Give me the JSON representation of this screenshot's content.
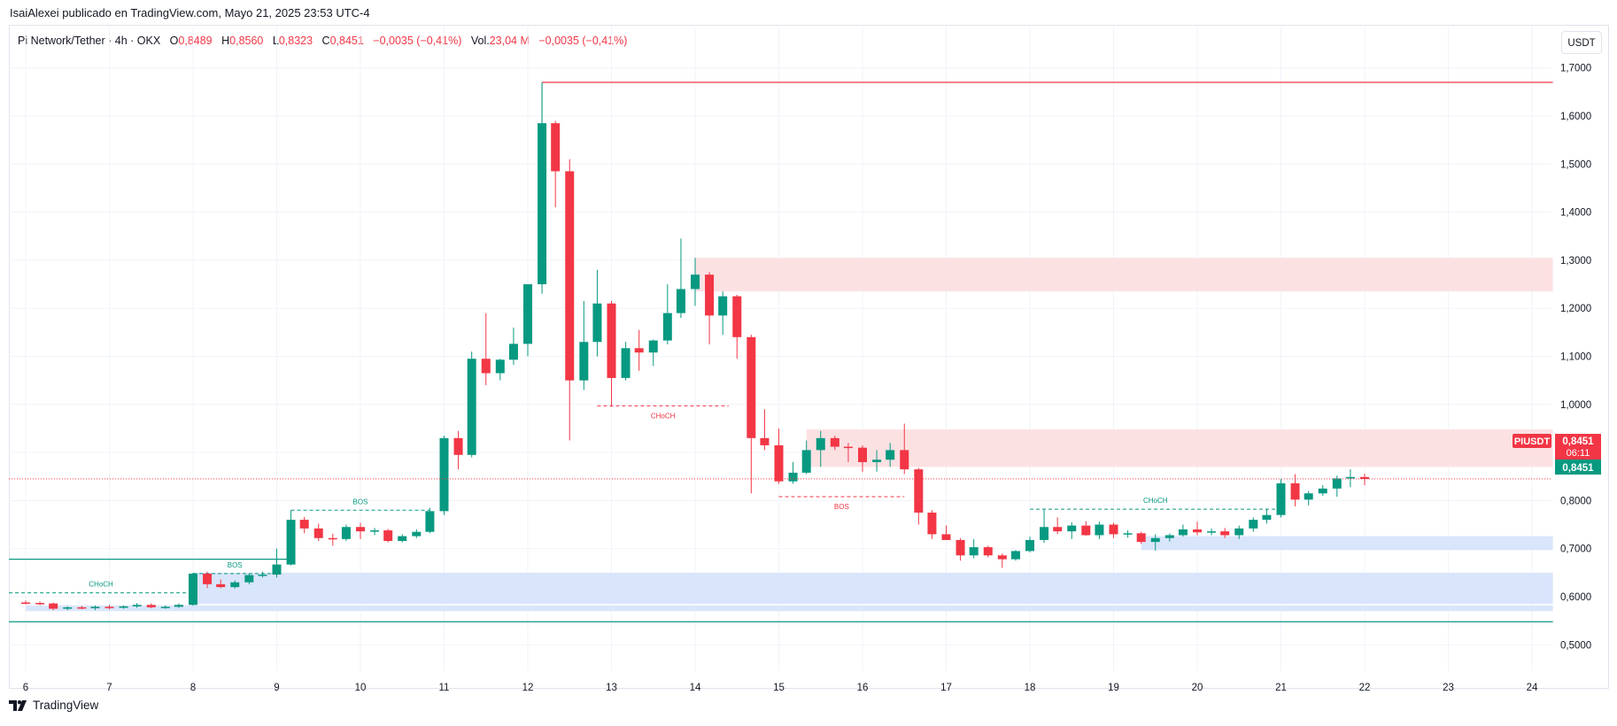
{
  "header": {
    "publisher": "IsaiAlexei publicado en TradingView.com, Mayo 21, 2025 23:53 UTC-4"
  },
  "legend": {
    "symbol": "Pi Network/Tether · 4h · OKX",
    "o_label": "O",
    "o_value": "0,8489",
    "h_label": "H",
    "h_value": "0,8560",
    "l_label": "L",
    "l_value": "0,8323",
    "c_label": "C",
    "c_value": "0,8451",
    "change": "−0,0035 (−0,41%)",
    "vol_label": "Vol.",
    "vol_value": "23,04 M",
    "vol_change": "−0,0035 (−0,41%)"
  },
  "price_axis": {
    "unit_button": "USDT"
  },
  "footer": {
    "brand": "TradingView"
  },
  "colors": {
    "up": "#089981",
    "down": "#f23645",
    "supply_zone": "#fce1e3",
    "demand_zone": "#d9e5fb",
    "grid": "#f0f3fa",
    "axis_text": "#131722"
  },
  "chart_data": {
    "type": "candlestick",
    "symbol": "PIUSDT",
    "interval": "4h",
    "ylim": [
      0.46,
      1.74
    ],
    "y_ticks": [
      0.5,
      0.6,
      0.7,
      0.8,
      0.9,
      1.0,
      1.1,
      1.2,
      1.3,
      1.4,
      1.5,
      1.6,
      1.7
    ],
    "y_tick_labels": [
      "0,5000",
      "0,6000",
      "0,7000",
      "0,8000",
      "0,9000",
      "1,0000",
      "1,1000",
      "1,2000",
      "1,3000",
      "1,4000",
      "1,5000",
      "1,6000",
      "1,7000"
    ],
    "x_labels": [
      "6",
      "7",
      "8",
      "9",
      "10",
      "11",
      "12",
      "13",
      "14",
      "15",
      "16",
      "17",
      "18",
      "19",
      "20",
      "21",
      "22",
      "23",
      "24"
    ],
    "candles": [
      {
        "day": 6.0,
        "o": 0.588,
        "h": 0.592,
        "l": 0.584,
        "c": 0.587
      },
      {
        "day": 6.17,
        "o": 0.587,
        "h": 0.59,
        "l": 0.583,
        "c": 0.586
      },
      {
        "day": 6.33,
        "o": 0.586,
        "h": 0.588,
        "l": 0.572,
        "c": 0.575
      },
      {
        "day": 6.5,
        "o": 0.575,
        "h": 0.58,
        "l": 0.572,
        "c": 0.578
      },
      {
        "day": 6.67,
        "o": 0.578,
        "h": 0.581,
        "l": 0.574,
        "c": 0.576
      },
      {
        "day": 6.83,
        "o": 0.576,
        "h": 0.582,
        "l": 0.572,
        "c": 0.579
      },
      {
        "day": 7.0,
        "o": 0.579,
        "h": 0.583,
        "l": 0.574,
        "c": 0.577
      },
      {
        "day": 7.17,
        "o": 0.577,
        "h": 0.582,
        "l": 0.575,
        "c": 0.58
      },
      {
        "day": 7.33,
        "o": 0.58,
        "h": 0.587,
        "l": 0.577,
        "c": 0.583
      },
      {
        "day": 7.5,
        "o": 0.583,
        "h": 0.586,
        "l": 0.576,
        "c": 0.578
      },
      {
        "day": 7.67,
        "o": 0.578,
        "h": 0.582,
        "l": 0.575,
        "c": 0.579
      },
      {
        "day": 7.83,
        "o": 0.579,
        "h": 0.586,
        "l": 0.577,
        "c": 0.583
      },
      {
        "day": 8.0,
        "o": 0.583,
        "h": 0.65,
        "l": 0.581,
        "c": 0.648
      },
      {
        "day": 8.17,
        "o": 0.648,
        "h": 0.652,
        "l": 0.618,
        "c": 0.626
      },
      {
        "day": 8.33,
        "o": 0.626,
        "h": 0.636,
        "l": 0.618,
        "c": 0.62
      },
      {
        "day": 8.5,
        "o": 0.62,
        "h": 0.634,
        "l": 0.617,
        "c": 0.63
      },
      {
        "day": 8.67,
        "o": 0.63,
        "h": 0.648,
        "l": 0.626,
        "c": 0.645
      },
      {
        "day": 8.83,
        "o": 0.645,
        "h": 0.652,
        "l": 0.64,
        "c": 0.646
      },
      {
        "day": 9.0,
        "o": 0.646,
        "h": 0.7,
        "l": 0.64,
        "c": 0.667
      },
      {
        "day": 9.17,
        "o": 0.667,
        "h": 0.78,
        "l": 0.665,
        "c": 0.76
      },
      {
        "day": 9.33,
        "o": 0.76,
        "h": 0.766,
        "l": 0.732,
        "c": 0.742
      },
      {
        "day": 9.5,
        "o": 0.742,
        "h": 0.752,
        "l": 0.716,
        "c": 0.722
      },
      {
        "day": 9.67,
        "o": 0.722,
        "h": 0.731,
        "l": 0.706,
        "c": 0.72
      },
      {
        "day": 9.83,
        "o": 0.72,
        "h": 0.75,
        "l": 0.716,
        "c": 0.745
      },
      {
        "day": 10.0,
        "o": 0.745,
        "h": 0.754,
        "l": 0.72,
        "c": 0.736
      },
      {
        "day": 10.17,
        "o": 0.736,
        "h": 0.743,
        "l": 0.728,
        "c": 0.738
      },
      {
        "day": 10.33,
        "o": 0.738,
        "h": 0.741,
        "l": 0.713,
        "c": 0.716
      },
      {
        "day": 10.5,
        "o": 0.716,
        "h": 0.73,
        "l": 0.713,
        "c": 0.726
      },
      {
        "day": 10.67,
        "o": 0.726,
        "h": 0.74,
        "l": 0.722,
        "c": 0.735
      },
      {
        "day": 10.83,
        "o": 0.735,
        "h": 0.785,
        "l": 0.732,
        "c": 0.778
      },
      {
        "day": 11.0,
        "o": 0.778,
        "h": 0.935,
        "l": 0.77,
        "c": 0.93
      },
      {
        "day": 11.17,
        "o": 0.93,
        "h": 0.945,
        "l": 0.865,
        "c": 0.895
      },
      {
        "day": 11.33,
        "o": 0.895,
        "h": 1.11,
        "l": 0.89,
        "c": 1.095
      },
      {
        "day": 11.5,
        "o": 1.095,
        "h": 1.19,
        "l": 1.04,
        "c": 1.065
      },
      {
        "day": 11.67,
        "o": 1.065,
        "h": 1.095,
        "l": 1.05,
        "c": 1.093
      },
      {
        "day": 11.83,
        "o": 1.093,
        "h": 1.16,
        "l": 1.082,
        "c": 1.126
      },
      {
        "day": 12.0,
        "o": 1.126,
        "h": 1.24,
        "l": 1.1,
        "c": 1.25
      },
      {
        "day": 12.17,
        "o": 1.25,
        "h": 1.67,
        "l": 1.23,
        "c": 1.585
      },
      {
        "day": 12.33,
        "o": 1.585,
        "h": 1.59,
        "l": 1.41,
        "c": 1.485
      },
      {
        "day": 12.5,
        "o": 1.485,
        "h": 1.51,
        "l": 0.925,
        "c": 1.05
      },
      {
        "day": 12.67,
        "o": 1.05,
        "h": 1.215,
        "l": 1.03,
        "c": 1.13
      },
      {
        "day": 12.83,
        "o": 1.13,
        "h": 1.28,
        "l": 1.1,
        "c": 1.21
      },
      {
        "day": 13.0,
        "o": 1.21,
        "h": 1.215,
        "l": 0.995,
        "c": 1.055
      },
      {
        "day": 13.17,
        "o": 1.055,
        "h": 1.13,
        "l": 1.05,
        "c": 1.117
      },
      {
        "day": 13.33,
        "o": 1.117,
        "h": 1.155,
        "l": 1.07,
        "c": 1.108
      },
      {
        "day": 13.5,
        "o": 1.108,
        "h": 1.135,
        "l": 1.08,
        "c": 1.133
      },
      {
        "day": 13.67,
        "o": 1.133,
        "h": 1.25,
        "l": 1.125,
        "c": 1.19
      },
      {
        "day": 13.83,
        "o": 1.19,
        "h": 1.345,
        "l": 1.18,
        "c": 1.24
      },
      {
        "day": 14.0,
        "o": 1.24,
        "h": 1.305,
        "l": 1.205,
        "c": 1.27
      },
      {
        "day": 14.17,
        "o": 1.27,
        "h": 1.275,
        "l": 1.125,
        "c": 1.185
      },
      {
        "day": 14.33,
        "o": 1.185,
        "h": 1.235,
        "l": 1.145,
        "c": 1.225
      },
      {
        "day": 14.5,
        "o": 1.225,
        "h": 1.228,
        "l": 1.095,
        "c": 1.14
      },
      {
        "day": 14.67,
        "o": 1.14,
        "h": 1.145,
        "l": 0.815,
        "c": 0.93
      },
      {
        "day": 14.83,
        "o": 0.93,
        "h": 0.99,
        "l": 0.905,
        "c": 0.915
      },
      {
        "day": 15.0,
        "o": 0.915,
        "h": 0.95,
        "l": 0.835,
        "c": 0.84
      },
      {
        "day": 15.17,
        "o": 0.84,
        "h": 0.88,
        "l": 0.835,
        "c": 0.858
      },
      {
        "day": 15.33,
        "o": 0.858,
        "h": 0.925,
        "l": 0.855,
        "c": 0.905
      },
      {
        "day": 15.5,
        "o": 0.905,
        "h": 0.945,
        "l": 0.87,
        "c": 0.93
      },
      {
        "day": 15.67,
        "o": 0.93,
        "h": 0.935,
        "l": 0.905,
        "c": 0.912
      },
      {
        "day": 15.83,
        "o": 0.912,
        "h": 0.92,
        "l": 0.88,
        "c": 0.91
      },
      {
        "day": 16.0,
        "o": 0.91,
        "h": 0.915,
        "l": 0.86,
        "c": 0.88
      },
      {
        "day": 16.17,
        "o": 0.88,
        "h": 0.905,
        "l": 0.86,
        "c": 0.885
      },
      {
        "day": 16.33,
        "o": 0.885,
        "h": 0.92,
        "l": 0.87,
        "c": 0.905
      },
      {
        "day": 16.5,
        "o": 0.905,
        "h": 0.96,
        "l": 0.855,
        "c": 0.865
      },
      {
        "day": 16.67,
        "o": 0.865,
        "h": 0.868,
        "l": 0.75,
        "c": 0.775
      },
      {
        "day": 16.83,
        "o": 0.775,
        "h": 0.78,
        "l": 0.72,
        "c": 0.73
      },
      {
        "day": 17.0,
        "o": 0.73,
        "h": 0.748,
        "l": 0.718,
        "c": 0.718
      },
      {
        "day": 17.17,
        "o": 0.718,
        "h": 0.722,
        "l": 0.675,
        "c": 0.686
      },
      {
        "day": 17.33,
        "o": 0.686,
        "h": 0.72,
        "l": 0.68,
        "c": 0.703
      },
      {
        "day": 17.5,
        "o": 0.703,
        "h": 0.706,
        "l": 0.682,
        "c": 0.686
      },
      {
        "day": 17.67,
        "o": 0.686,
        "h": 0.69,
        "l": 0.66,
        "c": 0.678
      },
      {
        "day": 17.83,
        "o": 0.678,
        "h": 0.697,
        "l": 0.675,
        "c": 0.695
      },
      {
        "day": 18.0,
        "o": 0.695,
        "h": 0.725,
        "l": 0.692,
        "c": 0.718
      },
      {
        "day": 18.17,
        "o": 0.718,
        "h": 0.782,
        "l": 0.712,
        "c": 0.745
      },
      {
        "day": 18.33,
        "o": 0.745,
        "h": 0.765,
        "l": 0.73,
        "c": 0.736
      },
      {
        "day": 18.5,
        "o": 0.736,
        "h": 0.755,
        "l": 0.72,
        "c": 0.748
      },
      {
        "day": 18.67,
        "o": 0.748,
        "h": 0.757,
        "l": 0.727,
        "c": 0.728
      },
      {
        "day": 18.83,
        "o": 0.728,
        "h": 0.756,
        "l": 0.72,
        "c": 0.75
      },
      {
        "day": 19.0,
        "o": 0.75,
        "h": 0.754,
        "l": 0.722,
        "c": 0.73
      },
      {
        "day": 19.17,
        "o": 0.73,
        "h": 0.738,
        "l": 0.723,
        "c": 0.732
      },
      {
        "day": 19.33,
        "o": 0.732,
        "h": 0.735,
        "l": 0.71,
        "c": 0.714
      },
      {
        "day": 19.5,
        "o": 0.714,
        "h": 0.73,
        "l": 0.696,
        "c": 0.722
      },
      {
        "day": 19.67,
        "o": 0.722,
        "h": 0.732,
        "l": 0.715,
        "c": 0.728
      },
      {
        "day": 19.83,
        "o": 0.728,
        "h": 0.75,
        "l": 0.725,
        "c": 0.74
      },
      {
        "day": 20.0,
        "o": 0.74,
        "h": 0.756,
        "l": 0.728,
        "c": 0.734
      },
      {
        "day": 20.17,
        "o": 0.734,
        "h": 0.742,
        "l": 0.728,
        "c": 0.736
      },
      {
        "day": 20.33,
        "o": 0.736,
        "h": 0.743,
        "l": 0.722,
        "c": 0.728
      },
      {
        "day": 20.5,
        "o": 0.728,
        "h": 0.748,
        "l": 0.72,
        "c": 0.742
      },
      {
        "day": 20.67,
        "o": 0.742,
        "h": 0.765,
        "l": 0.735,
        "c": 0.76
      },
      {
        "day": 20.83,
        "o": 0.76,
        "h": 0.783,
        "l": 0.752,
        "c": 0.77
      },
      {
        "day": 21.0,
        "o": 0.77,
        "h": 0.845,
        "l": 0.765,
        "c": 0.836
      },
      {
        "day": 21.17,
        "o": 0.836,
        "h": 0.855,
        "l": 0.788,
        "c": 0.802
      },
      {
        "day": 21.33,
        "o": 0.802,
        "h": 0.82,
        "l": 0.79,
        "c": 0.815
      },
      {
        "day": 21.5,
        "o": 0.815,
        "h": 0.832,
        "l": 0.81,
        "c": 0.825
      },
      {
        "day": 21.67,
        "o": 0.825,
        "h": 0.852,
        "l": 0.808,
        "c": 0.846
      },
      {
        "day": 21.83,
        "o": 0.846,
        "h": 0.865,
        "l": 0.828,
        "c": 0.849
      },
      {
        "day": 22.0,
        "o": 0.849,
        "h": 0.856,
        "l": 0.832,
        "c": 0.845
      }
    ],
    "zones": [
      {
        "kind": "supply",
        "x_from": 14.0,
        "x_to": 24.25,
        "y_from": 1.235,
        "y_to": 1.305
      },
      {
        "kind": "supply",
        "x_from": 15.33,
        "x_to": 24.25,
        "y_from": 0.87,
        "y_to": 0.948
      },
      {
        "kind": "demand",
        "x_from": 8.0,
        "x_to": 24.25,
        "y_from": 0.585,
        "y_to": 0.65
      },
      {
        "kind": "demand",
        "x_from": 6.0,
        "x_to": 24.25,
        "y_from": 0.57,
        "y_to": 0.582
      },
      {
        "kind": "demand",
        "x_from": 19.33,
        "x_to": 24.25,
        "y_from": 0.697,
        "y_to": 0.726
      }
    ],
    "levels": [
      {
        "kind": "solid",
        "color": "down",
        "x_from": 12.17,
        "x_to": 24.25,
        "y": 1.67
      },
      {
        "kind": "solid",
        "color": "up",
        "x_from": 5.8,
        "x_to": 9.17,
        "y": 0.678
      },
      {
        "kind": "solid",
        "color": "up",
        "x_from": 5.8,
        "x_to": 24.25,
        "y": 0.548
      }
    ],
    "structure_lines": [
      {
        "label": "CHoCH",
        "color": "up",
        "x_from": 5.8,
        "x_to": 8.0,
        "y": 0.608
      },
      {
        "label": "BOS",
        "color": "up",
        "x_from": 8.0,
        "x_to": 9.0,
        "y": 0.648
      },
      {
        "label": "BOS",
        "color": "up",
        "x_from": 9.17,
        "x_to": 10.83,
        "y": 0.78
      },
      {
        "label": "CHoCH",
        "color": "down",
        "x_from": 12.83,
        "x_to": 14.4,
        "y": 0.997
      },
      {
        "label": "BOS",
        "color": "down",
        "x_from": 15.0,
        "x_to": 16.5,
        "y": 0.808
      },
      {
        "label": "CHoCH",
        "color": "up",
        "x_from": 18.0,
        "x_to": 21.0,
        "y": 0.782
      }
    ],
    "last_price": {
      "symbol_tag": "PIUSDT",
      "value": 0.8451,
      "label": "0,8451",
      "countdown": "06:11"
    }
  }
}
